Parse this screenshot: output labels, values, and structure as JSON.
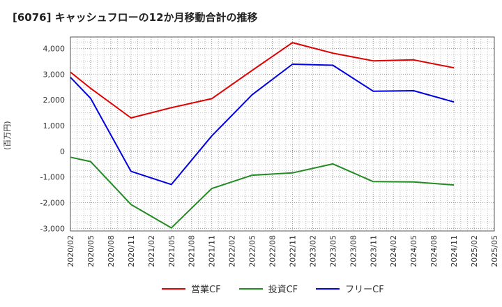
{
  "chart_data": {
    "type": "line",
    "title": "[6076]  キャッシュフローの12か月移動合計の推移",
    "ylabel": "(百万円)",
    "xlabel": "",
    "ylim": [
      -3100,
      4450
    ],
    "yticks": [
      4000,
      3000,
      2000,
      1000,
      0,
      -1000,
      -2000,
      -3000
    ],
    "ytick_labels": [
      "4,000",
      "3,000",
      "2,000",
      "1,000",
      "0",
      "-1,000",
      "-2,000",
      "-3,000"
    ],
    "categories": [
      "2020/02",
      "2020/05",
      "2020/08",
      "2020/11",
      "2021/02",
      "2021/05",
      "2021/08",
      "2021/11",
      "2022/02",
      "2022/05",
      "2022/08",
      "2022/11",
      "2023/02",
      "2023/05",
      "2023/08",
      "2023/11",
      "2024/02",
      "2024/05",
      "2024/08",
      "2024/11",
      "2025/02",
      "2025/05"
    ],
    "grid": true,
    "series": [
      {
        "name": "営業CF",
        "color": "#e00000",
        "x": [
          "2020/02",
          "2020/05",
          "2020/11",
          "2021/05",
          "2021/11",
          "2022/05",
          "2022/11",
          "2023/05",
          "2023/11",
          "2024/05",
          "2024/11"
        ],
        "values": [
          3080,
          2450,
          1300,
          1700,
          2050,
          3150,
          4230,
          3820,
          3520,
          3560,
          3250
        ]
      },
      {
        "name": "投資CF",
        "color": "#228b22",
        "x": [
          "2020/02",
          "2020/05",
          "2020/11",
          "2021/05",
          "2021/11",
          "2022/05",
          "2022/11",
          "2023/05",
          "2023/11",
          "2024/05",
          "2024/11"
        ],
        "values": [
          -230,
          -400,
          -2070,
          -2980,
          -1450,
          -930,
          -840,
          -490,
          -1180,
          -1190,
          -1310
        ]
      },
      {
        "name": "フリーCF",
        "color": "#0000e0",
        "x": [
          "2020/02",
          "2020/05",
          "2020/11",
          "2021/05",
          "2021/11",
          "2022/05",
          "2022/11",
          "2023/05",
          "2023/11",
          "2024/05",
          "2024/11"
        ],
        "values": [
          2880,
          2060,
          -780,
          -1290,
          600,
          2200,
          3390,
          3350,
          2340,
          2360,
          1920
        ]
      }
    ],
    "legend_position": "bottom"
  }
}
